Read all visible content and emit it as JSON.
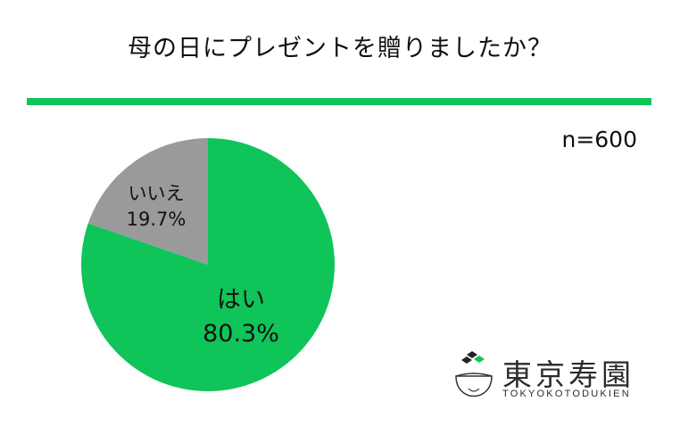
{
  "header": {
    "title": "母の日にプレゼントを贈りましたか？"
  },
  "sample": {
    "n_label": "n=600"
  },
  "colors": {
    "accent": "#0fc459",
    "green": "#0fc459",
    "gray": "#9a9a9a"
  },
  "chart_data": {
    "type": "pie",
    "title": "母の日にプレゼントを贈りましたか？",
    "slices": [
      {
        "label": "はい",
        "value": 80.3,
        "value_label": "80.3%",
        "color": "#0fc459"
      },
      {
        "label": "いいえ",
        "value": 19.7,
        "value_label": "19.7%",
        "color": "#9a9a9a"
      }
    ],
    "start": "top, clockwise"
  },
  "logo": {
    "name": "東京寿園",
    "sub": "TOKYOKOTODUKIEN"
  }
}
